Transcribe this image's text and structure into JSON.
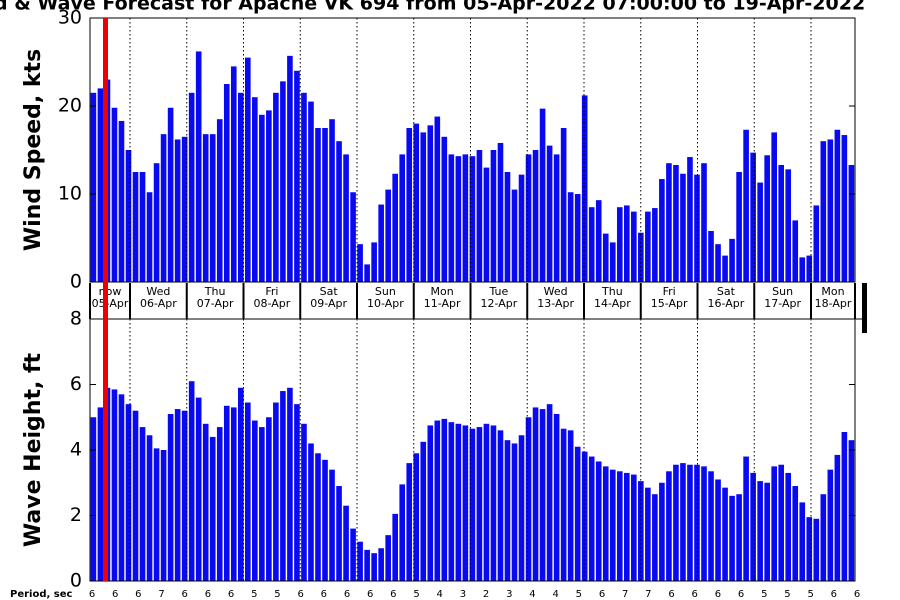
{
  "title": "d & Wave Forecast for Apache VK 694  from 05-Apr-2022 07:00:00 to 19-Apr-2022",
  "chart_data": [
    {
      "type": "bar",
      "ylabel": "Wind Speed, kts",
      "color": "#0a0af0",
      "values": [
        21.5,
        22,
        23,
        19.8,
        18.3,
        15,
        12.5,
        12.5,
        10.2,
        13.5,
        16.8,
        19.8,
        16.2,
        16.5,
        21.5,
        26.2,
        16.8,
        16.8,
        18.5,
        22.5,
        24.5,
        21.5,
        25.5,
        21,
        19,
        19.5,
        21.5,
        22.8,
        25.7,
        24,
        21.5,
        20.5,
        17.5,
        17.5,
        18.5,
        16,
        14.5,
        10.2,
        4.3,
        2,
        4.5,
        8.8,
        10.5,
        12.3,
        14.5,
        17.5,
        18,
        17,
        17.8,
        18.8,
        16.5,
        14.5,
        14.3,
        14.5,
        14.3,
        15,
        13,
        15,
        15.8,
        12.5,
        10.5,
        12.2,
        14.5,
        15,
        19.7,
        15.5,
        14.5,
        17.5,
        10.2,
        10,
        21.2,
        8.5,
        9.3,
        5.5,
        4.5,
        8.5,
        8.7,
        8,
        5.6,
        8,
        8.4,
        11.7,
        13.5,
        13.3,
        12.3,
        14.2,
        12.2,
        13.5,
        5.8,
        4.3,
        3,
        4.9,
        12.5,
        17.3,
        14.7,
        11.3,
        14.4,
        17,
        13.3,
        12.8,
        7,
        2.8,
        3,
        8.7,
        16,
        16.2,
        17.3,
        16.7,
        13.3
      ],
      "ylim": [
        0,
        30
      ],
      "yticks": [
        0,
        10,
        20,
        30
      ]
    },
    {
      "type": "bar",
      "ylabel": "Wave Height, ft",
      "color": "#0a0af0",
      "values": [
        5.0,
        5.3,
        5.9,
        5.85,
        5.7,
        5.4,
        5.2,
        4.7,
        4.45,
        4.05,
        4.0,
        5.1,
        5.25,
        5.2,
        6.1,
        5.6,
        4.8,
        4.4,
        4.7,
        5.35,
        5.3,
        5.9,
        5.45,
        4.9,
        4.7,
        5.0,
        5.45,
        5.8,
        5.9,
        5.4,
        4.8,
        4.2,
        3.9,
        3.7,
        3.4,
        2.9,
        2.3,
        1.6,
        1.2,
        0.95,
        0.85,
        1.0,
        1.4,
        2.05,
        2.95,
        3.6,
        3.9,
        4.25,
        4.75,
        4.9,
        4.95,
        4.85,
        4.8,
        4.75,
        4.65,
        4.7,
        4.8,
        4.75,
        4.6,
        4.3,
        4.2,
        4.45,
        5.0,
        5.3,
        5.25,
        5.4,
        5.1,
        4.65,
        4.6,
        4.1,
        3.95,
        3.8,
        3.65,
        3.5,
        3.4,
        3.35,
        3.3,
        3.25,
        3.05,
        2.85,
        2.65,
        3.0,
        3.35,
        3.55,
        3.6,
        3.55,
        3.55,
        3.5,
        3.35,
        3.1,
        2.85,
        2.6,
        2.65,
        3.8,
        3.3,
        3.05,
        3.0,
        3.5,
        3.55,
        3.3,
        2.9,
        2.4,
        1.95,
        1.9,
        2.65,
        3.4,
        3.85,
        4.55,
        4.3
      ],
      "ylim": [
        0,
        8
      ],
      "yticks": [
        0,
        2,
        4,
        6,
        8
      ]
    }
  ],
  "days": [
    {
      "name": "now",
      "date": "05-Apr"
    },
    {
      "name": "Wed",
      "date": "06-Apr"
    },
    {
      "name": "Thu",
      "date": "07-Apr"
    },
    {
      "name": "Fri",
      "date": "08-Apr"
    },
    {
      "name": "Sat",
      "date": "09-Apr"
    },
    {
      "name": "Sun",
      "date": "10-Apr"
    },
    {
      "name": "Mon",
      "date": "11-Apr"
    },
    {
      "name": "Tue",
      "date": "12-Apr"
    },
    {
      "name": "Wed",
      "date": "13-Apr"
    },
    {
      "name": "Thu",
      "date": "14-Apr"
    },
    {
      "name": "Fri",
      "date": "15-Apr"
    },
    {
      "name": "Sat",
      "date": "16-Apr"
    },
    {
      "name": "Sun",
      "date": "17-Apr"
    },
    {
      "name": "Mon",
      "date": "18-Apr"
    }
  ],
  "periods": {
    "label": "Period, sec",
    "values": [
      6,
      6,
      6,
      7,
      6,
      6,
      6,
      5,
      5,
      6,
      6,
      6,
      6,
      6,
      5,
      4,
      3,
      2,
      3,
      4,
      4,
      5,
      6,
      7,
      7,
      6,
      6,
      6,
      6,
      5,
      5,
      5,
      6,
      6
    ]
  }
}
